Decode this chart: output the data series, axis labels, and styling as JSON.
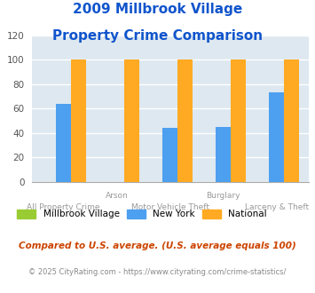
{
  "title_line1": "2009 Millbrook Village",
  "title_line2": "Property Crime Comparison",
  "groups": [
    "All Property Crime",
    "Arson",
    "Motor Vehicle Theft",
    "Burglary",
    "Larceny & Theft"
  ],
  "millbrook_values": [
    0,
    0,
    0,
    0,
    0
  ],
  "newyork_values": [
    64,
    0,
    44,
    45,
    73
  ],
  "national_values": [
    100,
    100,
    100,
    100,
    100
  ],
  "millbrook_color": "#99cc33",
  "newyork_color": "#4d9fef",
  "national_color": "#ffaa22",
  "bg_color": "#dde8f0",
  "ylim": [
    0,
    120
  ],
  "yticks": [
    0,
    20,
    40,
    60,
    80,
    100,
    120
  ],
  "legend_labels": [
    "Millbrook Village",
    "New York",
    "National"
  ],
  "footnote1": "Compared to U.S. average. (U.S. average equals 100)",
  "footnote2": "© 2025 CityRating.com - https://www.cityrating.com/crime-statistics/",
  "title_color": "#1155cc",
  "footnote1_color": "#cc4400",
  "footnote2_color": "#888888",
  "xlabel_color": "#999999",
  "bar_width": 0.28
}
